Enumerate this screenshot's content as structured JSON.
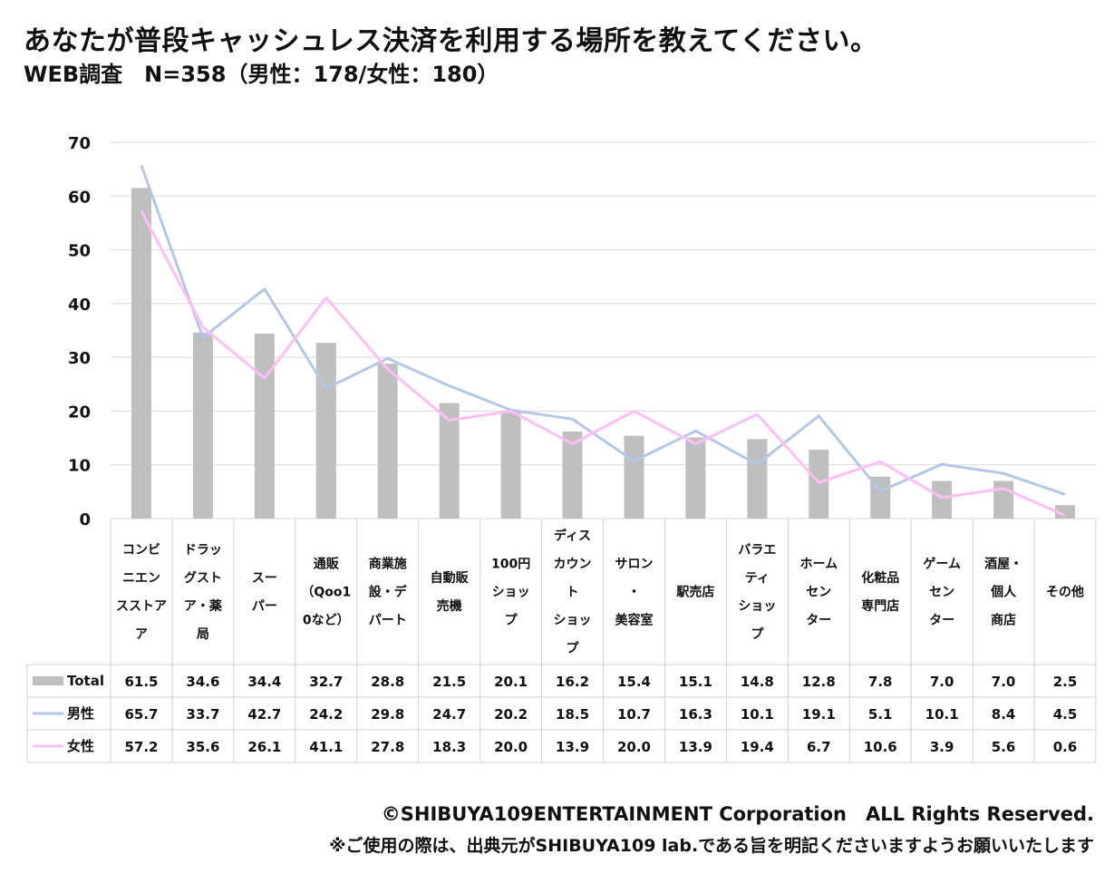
{
  "title": "あなたが普段キャッシュレス決済を利用する場所を教えてください。",
  "subtitle": "WEB調査　N=358（男性：178/女性：180）",
  "copyright": "©SHIBUYA109ENTERTAINMENT Corporation　ALL Rights Reserved.",
  "note": "※ご使用の際は、出典元がSHIBUYA109 lab.である旨を明記くださいますようお願いいたします",
  "colors": {
    "total": "#bfbfbf",
    "male": "#b4c7e7",
    "female": "#ffbff5",
    "grid": "#d9d9d9",
    "table_border": "#d0d0d0"
  },
  "chart_data": {
    "type": "bar+line",
    "title": "あなたが普段キャッシュレス決済を利用する場所を教えてください。",
    "ylim": [
      0,
      70
    ],
    "yticks": [
      0,
      10,
      20,
      30,
      40,
      50,
      60,
      70
    ],
    "grid": true,
    "legend_placement": "table-left",
    "categories": [
      [
        "コンビ",
        "ニエン",
        "スストア",
        "ア"
      ],
      [
        "ドラッ",
        "グスト",
        "ア・薬",
        "局"
      ],
      [
        "スー",
        "パー"
      ],
      [
        "通販",
        "（Qoo1",
        "0など）"
      ],
      [
        "商業施",
        "設・デ",
        "パート"
      ],
      [
        "自動販",
        "売機"
      ],
      [
        "100円",
        "ショッ",
        "プ"
      ],
      [
        "ディス",
        "カウン",
        "ト",
        "ショッ",
        "プ"
      ],
      [
        "サロン",
        "・",
        "美容室"
      ],
      [
        "駅売店"
      ],
      [
        "バラエ",
        "ティ",
        "ショッ",
        "プ"
      ],
      [
        "ホーム",
        "セン",
        "ター"
      ],
      [
        "化粧品",
        "専門店"
      ],
      [
        "ゲーム",
        "セン",
        "ター"
      ],
      [
        "酒屋・",
        "個人",
        "商店"
      ],
      [
        "その他"
      ]
    ],
    "series": [
      {
        "name": "Total",
        "kind": "bar",
        "values": [
          61.5,
          34.6,
          34.4,
          32.7,
          28.8,
          21.5,
          20.1,
          16.2,
          15.4,
          15.1,
          14.8,
          12.8,
          7.8,
          7.0,
          7.0,
          2.5
        ],
        "labels": [
          "61.5",
          "34.6",
          "34.4",
          "32.7",
          "28.8",
          "21.5",
          "20.1",
          "16.2",
          "15.4",
          "15.1",
          "14.8",
          "12.8",
          "7.8",
          "7.0",
          "7.0",
          "2.5"
        ]
      },
      {
        "name": "男性",
        "kind": "line",
        "values": [
          65.7,
          33.7,
          42.7,
          24.2,
          29.8,
          24.7,
          20.2,
          18.5,
          10.7,
          16.3,
          10.1,
          19.1,
          5.1,
          10.1,
          8.4,
          4.5
        ],
        "labels": [
          "65.7",
          "33.7",
          "42.7",
          "24.2",
          "29.8",
          "24.7",
          "20.2",
          "18.5",
          "10.7",
          "16.3",
          "10.1",
          "19.1",
          "5.1",
          "10.1",
          "8.4",
          "4.5"
        ]
      },
      {
        "name": "女性",
        "kind": "line",
        "values": [
          57.2,
          35.6,
          26.1,
          41.1,
          27.8,
          18.3,
          20.0,
          13.9,
          20.0,
          13.9,
          19.4,
          6.7,
          10.6,
          3.9,
          5.6,
          0.6
        ],
        "labels": [
          "57.2",
          "35.6",
          "26.1",
          "41.1",
          "27.8",
          "18.3",
          "20.0",
          "13.9",
          "20.0",
          "13.9",
          "19.4",
          "6.7",
          "10.6",
          "3.9",
          "5.6",
          "0.6"
        ]
      }
    ]
  }
}
